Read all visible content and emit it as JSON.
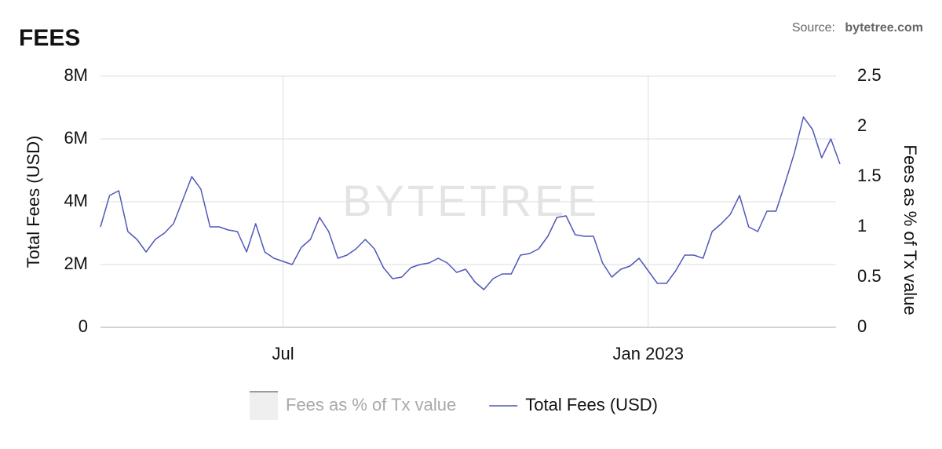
{
  "chart_data": {
    "type": "line",
    "title": "FEES",
    "source_label": "Source:",
    "source_name": "bytetree.com",
    "watermark": "BYTETREE",
    "y_label": "Total Fees (USD)",
    "y2_label": "Fees as % of Tx value",
    "categories": [
      null,
      null,
      null,
      null,
      null,
      null,
      null,
      null,
      null,
      null,
      null,
      null,
      null,
      null,
      null,
      null,
      null,
      null,
      null,
      null,
      "Jul",
      null,
      null,
      null,
      null,
      null,
      null,
      null,
      null,
      null,
      null,
      null,
      null,
      null,
      null,
      null,
      null,
      null,
      null,
      null,
      null,
      null,
      null,
      null,
      null,
      null,
      null,
      null,
      null,
      null,
      null,
      null,
      null,
      null,
      null,
      null,
      null,
      null,
      null,
      null,
      "Jan 2023",
      null,
      null,
      null,
      null,
      null,
      null,
      null,
      null,
      null,
      null,
      null,
      null,
      null,
      null,
      null,
      null,
      null,
      null,
      null,
      null,
      null
    ],
    "series": [
      {
        "name": "Fees as % of Tx value",
        "color": "#9a9a9a",
        "axis": "y2",
        "visible": false,
        "values": [
          null,
          null,
          null,
          null,
          null,
          null,
          null,
          null,
          null,
          null,
          null,
          null,
          null,
          null,
          null,
          null,
          null,
          null,
          null,
          null,
          null,
          null,
          null,
          null,
          null,
          null,
          null,
          null,
          null,
          null,
          null,
          null,
          null,
          null,
          null,
          null,
          null,
          null,
          null,
          null,
          null,
          null,
          null,
          null,
          null,
          null,
          null,
          null,
          null,
          null,
          null,
          null,
          null,
          null,
          null,
          null,
          null,
          null,
          null,
          null,
          null,
          null,
          null,
          null,
          null,
          null,
          null,
          null,
          null,
          null,
          null,
          null,
          null,
          null,
          null,
          null,
          null,
          null,
          null,
          null,
          null,
          null
        ]
      },
      {
        "name": "Total Fees (USD)",
        "color": "#5058b8",
        "axis": "y",
        "visible": true,
        "values": [
          3200000,
          4200000,
          4350000,
          3050000,
          2800000,
          2400000,
          2800000,
          3000000,
          3300000,
          4050000,
          4800000,
          4400000,
          3200000,
          3200000,
          3100000,
          3050000,
          2400000,
          3300000,
          2400000,
          2200000,
          2100000,
          2000000,
          2550000,
          2800000,
          3500000,
          3050000,
          2200000,
          2300000,
          2500000,
          2800000,
          2500000,
          1900000,
          1550000,
          1600000,
          1900000,
          2000000,
          2050000,
          2200000,
          2050000,
          1750000,
          1850000,
          1450000,
          1200000,
          1550000,
          1700000,
          1700000,
          2300000,
          2350000,
          2500000,
          2900000,
          3500000,
          3550000,
          2950000,
          2900000,
          2900000,
          2050000,
          1600000,
          1850000,
          1950000,
          2200000,
          1800000,
          1400000,
          1400000,
          1800000,
          2300000,
          2300000,
          2200000,
          3050000,
          3300000,
          3600000,
          4200000,
          3200000,
          3050000,
          3700000,
          3700000,
          4600000,
          5550000,
          6700000,
          6300000,
          5400000,
          6000000,
          5200000
        ]
      }
    ],
    "ylim": [
      0,
      8000000
    ],
    "yticks": [
      0,
      {
        "value": 2000000,
        "label": "2M"
      },
      {
        "value": 4000000,
        "label": "4M"
      },
      {
        "value": 6000000,
        "label": "6M"
      },
      {
        "value": 8000000,
        "label": "8M"
      }
    ],
    "y2lim": [
      0,
      2.5
    ],
    "y2ticks": [
      0,
      0.5,
      1,
      1.5,
      2,
      2.5
    ],
    "grid": true
  }
}
